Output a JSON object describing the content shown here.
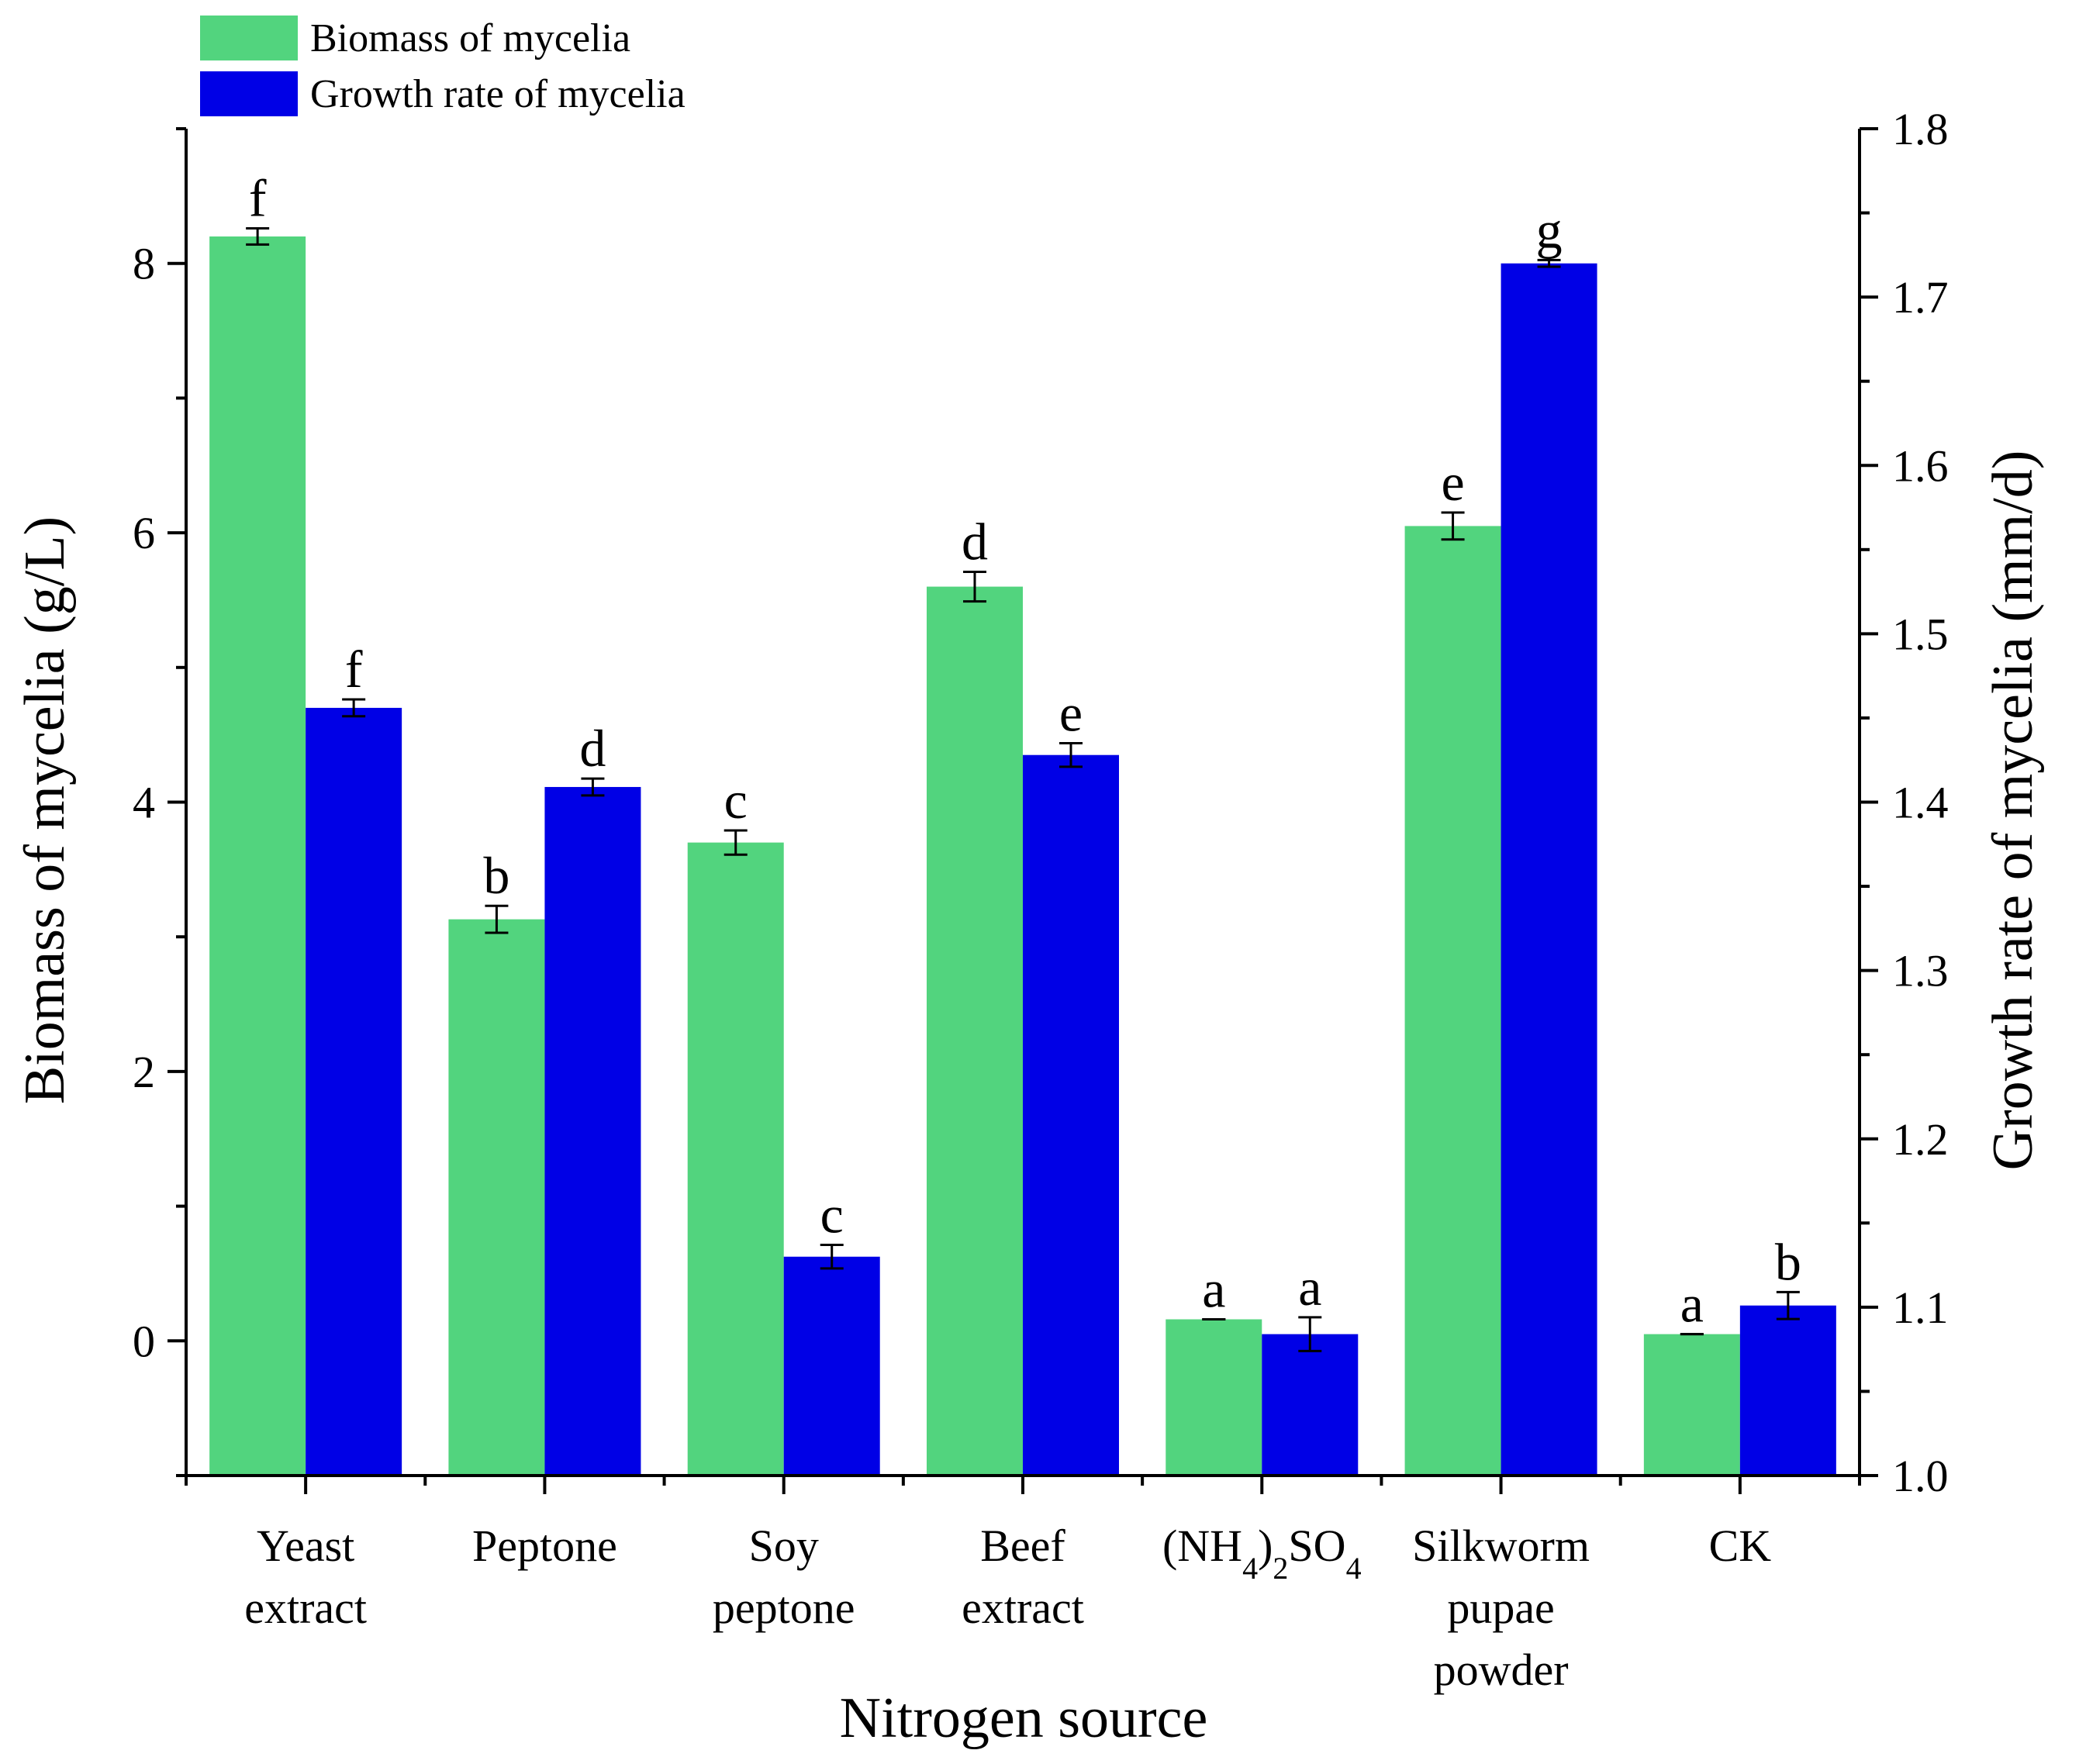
{
  "chart_data": {
    "type": "bar",
    "title": "",
    "xlabel": "Nitrogen source",
    "ylabel": "Biomass of mycelia (g/L)",
    "y2label": "Growth rate of mycelia (mm/d)",
    "ylim": [
      -1,
      9
    ],
    "y2lim": [
      1.0,
      1.8
    ],
    "yticks": [
      "0",
      "2",
      "4",
      "6",
      "8"
    ],
    "y2ticks": [
      "1.0",
      "1.1",
      "1.2",
      "1.3",
      "1.4",
      "1.5",
      "1.6",
      "1.7",
      "1.8"
    ],
    "categories": [
      [
        "Yeast",
        "extract"
      ],
      [
        "Peptone"
      ],
      [
        "Soy",
        "peptone"
      ],
      [
        "Beef",
        "extract"
      ],
      [
        "(NH4)2SO4"
      ],
      [
        "Silkworm",
        "pupae",
        "powder"
      ],
      [
        "CK"
      ]
    ],
    "legend_position": "top-left",
    "series": [
      {
        "name": "Biomass of mycelia",
        "axis": "left",
        "color": "#52d47e",
        "values": [
          8.2,
          3.13,
          3.7,
          5.6,
          0.16,
          6.05,
          0.05
        ],
        "errors": [
          0.06,
          0.1,
          0.09,
          0.11,
          0.0,
          0.1,
          0.0
        ],
        "letters": [
          "f",
          "b",
          "c",
          "d",
          "a",
          "e",
          "a"
        ]
      },
      {
        "name": "Growth rate of mycelia",
        "axis": "right",
        "color": "#0000e6",
        "values": [
          1.456,
          1.409,
          1.13,
          1.428,
          1.084,
          1.72,
          1.101
        ],
        "errors": [
          0.005,
          0.005,
          0.007,
          0.007,
          0.01,
          0.002,
          0.008
        ],
        "letters": [
          "f",
          "d",
          "c",
          "e",
          "a",
          "g",
          "b"
        ]
      }
    ]
  }
}
